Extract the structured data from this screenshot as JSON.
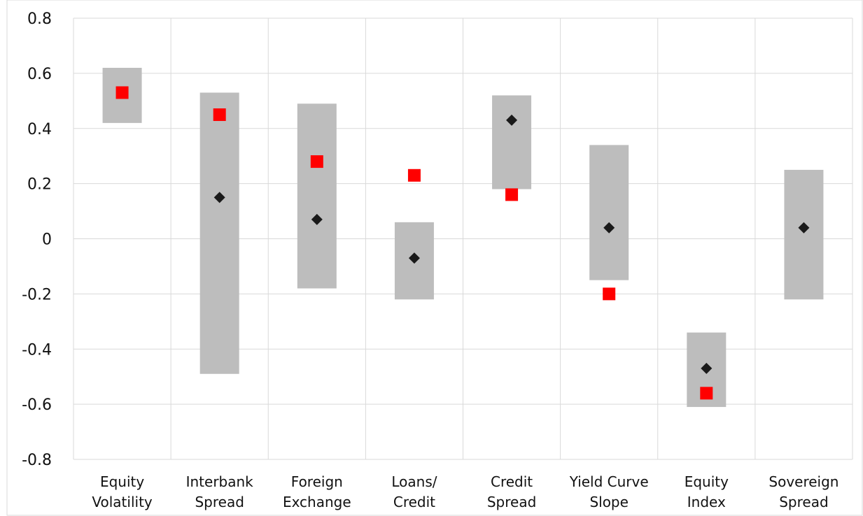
{
  "chart_data": {
    "type": "range",
    "categories": [
      [
        "Equity",
        "Volatility"
      ],
      [
        "Interbank",
        "Spread"
      ],
      [
        "Foreign",
        "Exchange"
      ],
      [
        "Loans/",
        "Credit"
      ],
      [
        "Credit",
        "Spread"
      ],
      [
        "Yield Curve",
        "Slope"
      ],
      [
        "Equity",
        "Index"
      ],
      [
        "Sovereign",
        "Spread"
      ]
    ],
    "ranges": [
      [
        0.42,
        0.62
      ],
      [
        -0.49,
        0.53
      ],
      [
        -0.18,
        0.49
      ],
      [
        -0.22,
        0.06
      ],
      [
        0.18,
        0.52
      ],
      [
        -0.15,
        0.34
      ],
      [
        -0.61,
        -0.34
      ],
      [
        -0.22,
        0.25
      ]
    ],
    "series": [
      {
        "marker": "diamond",
        "values": [
          0.53,
          0.15,
          0.07,
          -0.07,
          0.43,
          0.04,
          -0.47,
          0.04
        ]
      },
      {
        "marker": "square",
        "values": [
          0.53,
          0.45,
          0.28,
          0.23,
          0.16,
          -0.2,
          -0.56,
          null
        ]
      }
    ],
    "ylim": [
      -0.8,
      0.8
    ],
    "yticks": [
      "0.8",
      "0.6",
      "0.4",
      "0.2",
      "0",
      "-0.2",
      "-0.4",
      "-0.6",
      "-0.8"
    ],
    "grid": true,
    "colors": {
      "range": "#bdbdbd",
      "diamond": "#1a1a1a",
      "square": "#ff0000",
      "grid": "#d9d9d9"
    }
  }
}
